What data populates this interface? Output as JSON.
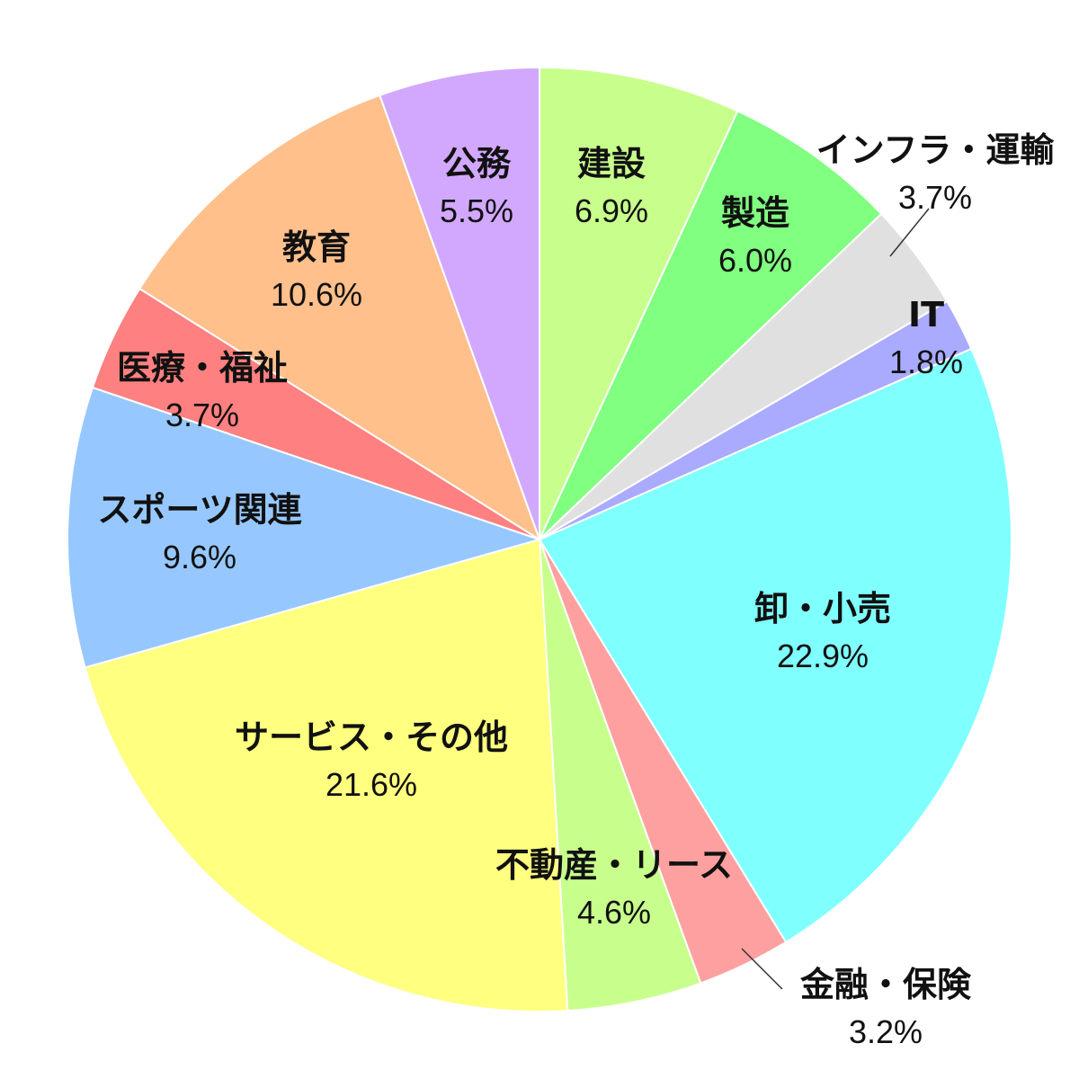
{
  "chart_data": {
    "type": "pie",
    "start": "12 o'clock",
    "direction": "clockwise",
    "slices": [
      {
        "label": "建設",
        "value": 6.9,
        "value_label": "6.9%",
        "color": "#c8ff8c"
      },
      {
        "label": "製造",
        "value": 6.0,
        "value_label": "6.0%",
        "color": "#80ff80"
      },
      {
        "label": "インフラ・運輸",
        "value": 3.7,
        "value_label": "3.7%",
        "color": "#e0e0e0"
      },
      {
        "label": "IT",
        "value": 1.8,
        "value_label": "1.8%",
        "color": "#aaaaff"
      },
      {
        "label": "卸・小売",
        "value": 22.9,
        "value_label": "22.9%",
        "color": "#80ffff"
      },
      {
        "label": "金融・保険",
        "value": 3.2,
        "value_label": "3.2%",
        "color": "#ffa0a0"
      },
      {
        "label": "不動産・リース",
        "value": 4.6,
        "value_label": "4.6%",
        "color": "#c8ff8c"
      },
      {
        "label": "サービス・その他",
        "value": 21.6,
        "value_label": "21.6%",
        "color": "#ffff80"
      },
      {
        "label": "スポーツ関連",
        "value": 9.6,
        "value_label": "9.6%",
        "color": "#96c8ff"
      },
      {
        "label": "医療・福祉",
        "value": 3.7,
        "value_label": "3.7%",
        "color": "#ff8080"
      },
      {
        "label": "教育",
        "value": 10.6,
        "value_label": "10.6%",
        "color": "#ffc08c"
      },
      {
        "label": "公務",
        "value": 5.5,
        "value_label": "5.5%",
        "color": "#d2a8ff"
      }
    ]
  }
}
